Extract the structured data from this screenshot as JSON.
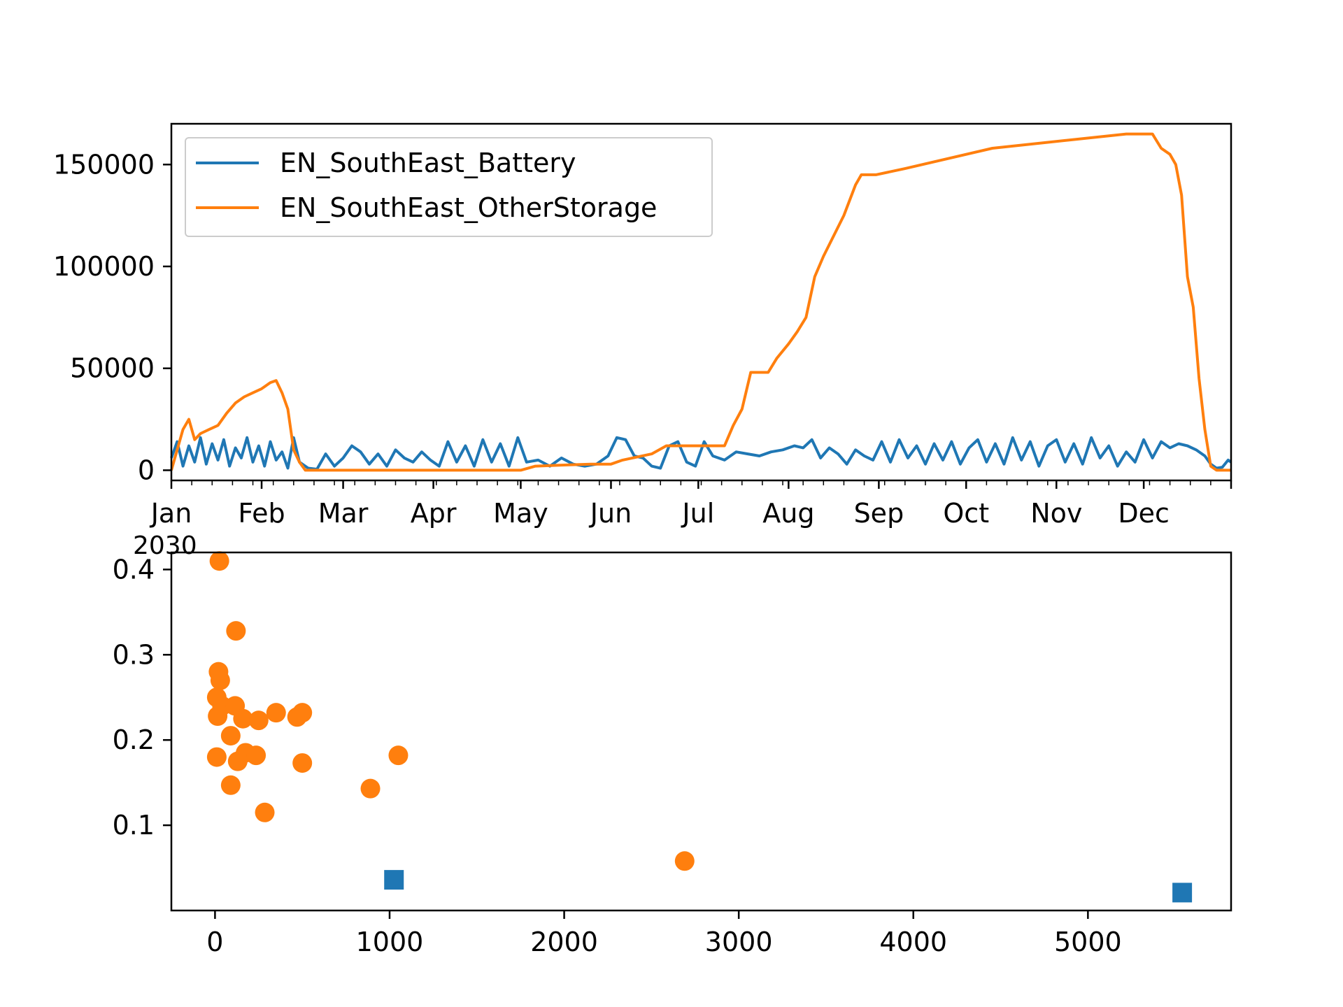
{
  "colors": {
    "battery": "#1f77b4",
    "other_storage": "#ff7f0e",
    "axes": "#000000",
    "legend_border": "#cccccc"
  },
  "chart_data": [
    {
      "type": "line",
      "title": "",
      "xlabel": "",
      "ylabel": "",
      "x_unit": "date",
      "xlim": [
        "2030-01-01",
        "2030-12-31"
      ],
      "ylim": [
        -5000,
        170000
      ],
      "x_ticks": [
        "Jan",
        "Feb",
        "Mar",
        "Apr",
        "May",
        "Jun",
        "Jul",
        "Aug",
        "Sep",
        "Oct",
        "Nov",
        "Dec"
      ],
      "x_tick_dates": [
        "2030-01-01",
        "2030-02-01",
        "2030-03-01",
        "2030-04-01",
        "2030-05-01",
        "2030-06-01",
        "2030-07-01",
        "2030-08-01",
        "2030-09-01",
        "2030-10-01",
        "2030-11-01",
        "2030-12-01"
      ],
      "x_offset_label": "2030",
      "y_ticks": [
        0,
        50000,
        100000,
        150000
      ],
      "y_tick_labels": [
        "0",
        "50000",
        "100000",
        "150000"
      ],
      "grid": false,
      "legend": "top-left",
      "series": [
        {
          "name": "EN_SouthEast_Battery",
          "color": "#1f77b4",
          "x": [
            "2030-01-01",
            "2030-01-03",
            "2030-01-05",
            "2030-01-07",
            "2030-01-09",
            "2030-01-11",
            "2030-01-13",
            "2030-01-15",
            "2030-01-17",
            "2030-01-19",
            "2030-01-21",
            "2030-01-23",
            "2030-01-25",
            "2030-01-27",
            "2030-01-29",
            "2030-01-31",
            "2030-02-02",
            "2030-02-04",
            "2030-02-06",
            "2030-02-08",
            "2030-02-10",
            "2030-02-12",
            "2030-02-14",
            "2030-02-17",
            "2030-02-20",
            "2030-02-23",
            "2030-02-26",
            "2030-03-01",
            "2030-03-04",
            "2030-03-07",
            "2030-03-10",
            "2030-03-13",
            "2030-03-16",
            "2030-03-19",
            "2030-03-22",
            "2030-03-25",
            "2030-03-28",
            "2030-03-31",
            "2030-04-03",
            "2030-04-06",
            "2030-04-09",
            "2030-04-12",
            "2030-04-15",
            "2030-04-18",
            "2030-04-21",
            "2030-04-24",
            "2030-04-27",
            "2030-04-30",
            "2030-05-03",
            "2030-05-07",
            "2030-05-11",
            "2030-05-15",
            "2030-05-19",
            "2030-05-23",
            "2030-05-27",
            "2030-05-31",
            "2030-06-03",
            "2030-06-06",
            "2030-06-09",
            "2030-06-12",
            "2030-06-15",
            "2030-06-18",
            "2030-06-21",
            "2030-06-24",
            "2030-06-27",
            "2030-06-30",
            "2030-07-03",
            "2030-07-06",
            "2030-07-10",
            "2030-07-14",
            "2030-07-18",
            "2030-07-22",
            "2030-07-26",
            "2030-07-30",
            "2030-08-03",
            "2030-08-06",
            "2030-08-09",
            "2030-08-12",
            "2030-08-15",
            "2030-08-18",
            "2030-08-21",
            "2030-08-24",
            "2030-08-27",
            "2030-08-30",
            "2030-09-02",
            "2030-09-05",
            "2030-09-08",
            "2030-09-11",
            "2030-09-14",
            "2030-09-17",
            "2030-09-20",
            "2030-09-23",
            "2030-09-26",
            "2030-09-29",
            "2030-10-02",
            "2030-10-05",
            "2030-10-08",
            "2030-10-11",
            "2030-10-14",
            "2030-10-17",
            "2030-10-20",
            "2030-10-23",
            "2030-10-26",
            "2030-10-29",
            "2030-11-01",
            "2030-11-04",
            "2030-11-07",
            "2030-11-10",
            "2030-11-13",
            "2030-11-16",
            "2030-11-19",
            "2030-11-22",
            "2030-11-25",
            "2030-11-28",
            "2030-12-01",
            "2030-12-04",
            "2030-12-07",
            "2030-12-10",
            "2030-12-13",
            "2030-12-16",
            "2030-12-19",
            "2030-12-22",
            "2030-12-24",
            "2030-12-26",
            "2030-12-28",
            "2030-12-30",
            "2030-12-31"
          ],
          "y": [
            6000,
            14000,
            2000,
            12000,
            4000,
            16000,
            3000,
            13000,
            5000,
            15000,
            2000,
            11000,
            6000,
            16000,
            4000,
            12000,
            2000,
            14000,
            5000,
            9000,
            1000,
            16000,
            4000,
            1000,
            500,
            8000,
            2000,
            6000,
            12000,
            9000,
            3000,
            8000,
            2000,
            10000,
            6000,
            4000,
            9000,
            5000,
            2000,
            14000,
            4000,
            12000,
            2000,
            15000,
            4000,
            13000,
            2000,
            16000,
            4000,
            5000,
            2000,
            6000,
            3000,
            2000,
            3000,
            7000,
            16000,
            15000,
            7000,
            6000,
            2000,
            1000,
            12000,
            14000,
            4000,
            2000,
            14000,
            7000,
            5000,
            9000,
            8000,
            7000,
            9000,
            10000,
            12000,
            11000,
            15000,
            6000,
            11000,
            8000,
            3000,
            10000,
            7000,
            5000,
            14000,
            4000,
            15000,
            6000,
            12000,
            3000,
            13000,
            5000,
            14000,
            3000,
            11000,
            15000,
            4000,
            13000,
            3000,
            16000,
            5000,
            14000,
            2000,
            12000,
            15000,
            4000,
            13000,
            3000,
            16000,
            6000,
            12000,
            2000,
            9000,
            4000,
            15000,
            6000,
            14000,
            11000,
            13000,
            12000,
            10000,
            7000,
            3000,
            1000,
            1500,
            5000,
            4000
          ]
        },
        {
          "name": "EN_SouthEast_OtherStorage",
          "color": "#ff7f0e",
          "x": [
            "2030-01-01",
            "2030-01-03",
            "2030-01-05",
            "2030-01-07",
            "2030-01-09",
            "2030-01-11",
            "2030-01-14",
            "2030-01-17",
            "2030-01-20",
            "2030-01-23",
            "2030-01-26",
            "2030-01-29",
            "2030-02-01",
            "2030-02-04",
            "2030-02-06",
            "2030-02-08",
            "2030-02-10",
            "2030-02-12",
            "2030-02-14",
            "2030-02-16",
            "2030-03-01",
            "2030-04-01",
            "2030-05-01",
            "2030-05-06",
            "2030-05-15",
            "2030-05-25",
            "2030-06-01",
            "2030-06-05",
            "2030-06-15",
            "2030-06-20",
            "2030-06-22",
            "2030-06-25",
            "2030-06-27",
            "2030-06-30",
            "2030-07-10",
            "2030-07-13",
            "2030-07-16",
            "2030-07-19",
            "2030-07-22",
            "2030-07-25",
            "2030-07-28",
            "2030-08-01",
            "2030-08-04",
            "2030-08-07",
            "2030-08-10",
            "2030-08-13",
            "2030-08-20",
            "2030-08-24",
            "2030-08-26",
            "2030-08-28",
            "2030-08-31",
            "2030-09-10",
            "2030-10-10",
            "2030-11-25",
            "2030-11-28",
            "2030-12-01",
            "2030-12-04",
            "2030-12-07",
            "2030-12-10",
            "2030-12-12",
            "2030-12-14",
            "2030-12-16",
            "2030-12-18",
            "2030-12-20",
            "2030-12-22",
            "2030-12-24",
            "2030-12-26",
            "2030-12-31"
          ],
          "y": [
            0,
            10000,
            20000,
            25000,
            15000,
            18000,
            20000,
            22000,
            28000,
            33000,
            36000,
            38000,
            40000,
            43000,
            44000,
            38000,
            30000,
            10000,
            4000,
            0,
            0,
            0,
            0,
            2000,
            2500,
            3000,
            3000,
            5000,
            8000,
            12000,
            12000,
            12000,
            12000,
            12000,
            12000,
            22000,
            30000,
            48000,
            48000,
            48000,
            55000,
            62000,
            68000,
            75000,
            95000,
            105000,
            125000,
            140000,
            145000,
            145000,
            145000,
            148000,
            158000,
            165000,
            165000,
            165000,
            165000,
            158000,
            155000,
            150000,
            135000,
            95000,
            80000,
            45000,
            20000,
            2000,
            0,
            0
          ]
        }
      ]
    },
    {
      "type": "scatter",
      "title": "",
      "xlabel": "",
      "ylabel": "",
      "xlim": [
        -250,
        5820
      ],
      "ylim": [
        0.0,
        0.42
      ],
      "x_ticks": [
        0,
        1000,
        2000,
        3000,
        4000,
        5000
      ],
      "x_tick_labels": [
        "0",
        "1000",
        "2000",
        "3000",
        "4000",
        "5000"
      ],
      "y_ticks": [
        0.1,
        0.2,
        0.3,
        0.4
      ],
      "y_tick_labels": [
        "0.1",
        "0.2",
        "0.3",
        "0.4"
      ],
      "grid": false,
      "series": [
        {
          "color": "#ff7f0e",
          "marker": "circle",
          "x": [
            25,
            120,
            20,
            30,
            10,
            15,
            40,
            115,
            160,
            90,
            250,
            350,
            470,
            500,
            10,
            130,
            175,
            235,
            90,
            500,
            1050,
            890,
            285,
            2690
          ],
          "y": [
            0.41,
            0.328,
            0.28,
            0.27,
            0.25,
            0.228,
            0.24,
            0.24,
            0.225,
            0.205,
            0.223,
            0.232,
            0.227,
            0.232,
            0.18,
            0.175,
            0.185,
            0.182,
            0.147,
            0.173,
            0.182,
            0.143,
            0.115,
            0.058
          ]
        },
        {
          "color": "#1f77b4",
          "marker": "square",
          "x": [
            1025,
            5540
          ],
          "y": [
            0.036,
            0.021
          ]
        }
      ]
    }
  ]
}
